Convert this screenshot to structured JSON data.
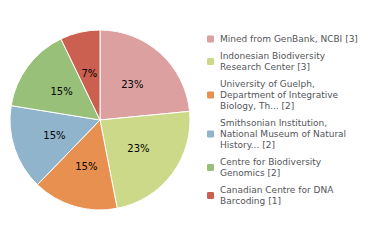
{
  "chart_data": {
    "type": "pie",
    "categories": [
      "Mined from GenBank, NCBI [3]",
      "Indonesian Biodiversity\nResearch Center [3]",
      "University of Guelph,\nDepartment of Integrative\nBiology, Th... [2]",
      "Smithsonian Institution,\nNational Museum of Natural\nHistory... [2]",
      "Centre for Biodiversity\nGenomics [2]",
      "Canadian Centre for DNA\nBarcoding [1]"
    ],
    "values": [
      23,
      23,
      15,
      15,
      15,
      7
    ],
    "value_labels": [
      "23%",
      "23%",
      "15%",
      "15%",
      "15%",
      "7%"
    ],
    "colors": [
      "#dda0a0",
      "#ccd988",
      "#e89050",
      "#90b4cc",
      "#98c078",
      "#cc6050"
    ],
    "data_labels": true,
    "legend": "right"
  }
}
